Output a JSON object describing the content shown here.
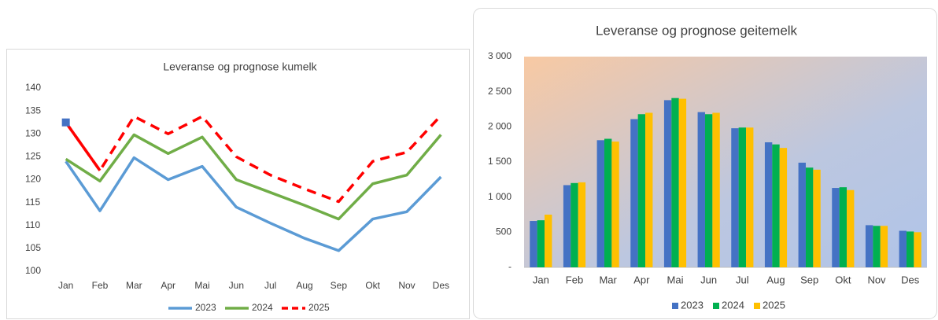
{
  "chart_data": [
    {
      "type": "line",
      "title": "Leveranse og prognose kumelk",
      "categories": [
        "Jan",
        "Feb",
        "Mar",
        "Apr",
        "Mai",
        "Jun",
        "Jul",
        "Aug",
        "Sep",
        "Okt",
        "Nov",
        "Des"
      ],
      "ylim": [
        100,
        140
      ],
      "yticks": [
        100,
        105,
        110,
        115,
        120,
        125,
        130,
        135,
        140
      ],
      "grid": false,
      "legend": "bottom",
      "series": [
        {
          "name": "2023",
          "color": "#5b9bd5",
          "values": [
            124,
            113.2,
            124.8,
            120,
            122.9,
            114,
            110.5,
            107.2,
            104.5,
            111.4,
            113,
            120.6
          ]
        },
        {
          "name": "2024",
          "color": "#70ad47",
          "values": [
            124.5,
            119.7,
            129.8,
            125.7,
            129.3,
            120,
            117.2,
            114.4,
            111.4,
            119.1,
            121,
            129.8
          ]
        },
        {
          "name": "2025",
          "color": "#ff0000",
          "values": [
            132.5,
            122,
            133.8,
            130,
            133.8,
            125,
            121,
            118,
            115.2,
            124,
            126,
            134
          ]
        }
      ]
    },
    {
      "type": "bar",
      "title": "Leveranse og prognose geitemelk",
      "categories": [
        "Jan",
        "Feb",
        "Mar",
        "Apr",
        "Mai",
        "Jun",
        "Jul",
        "Aug",
        "Sep",
        "Okt",
        "Nov",
        "Des"
      ],
      "ylim": [
        0,
        3000
      ],
      "yticks": [
        {
          "value": 0,
          "label": "-"
        },
        {
          "value": 500,
          "label": "500"
        },
        {
          "value": 1000,
          "label": "1 000"
        },
        {
          "value": 1500,
          "label": "1 500"
        },
        {
          "value": 2000,
          "label": "2 000"
        },
        {
          "value": 2500,
          "label": "2 500"
        },
        {
          "value": 3000,
          "label": "3 000"
        }
      ],
      "grid": false,
      "legend": "bottom",
      "series": [
        {
          "name": "2023",
          "color": "#4472c4",
          "values": [
            660,
            1170,
            1810,
            2110,
            2380,
            2210,
            1980,
            1780,
            1490,
            1130,
            600,
            520
          ]
        },
        {
          "name": "2024",
          "color": "#00b050",
          "values": [
            670,
            1200,
            1830,
            2180,
            2410,
            2180,
            1990,
            1750,
            1420,
            1140,
            590,
            510
          ]
        },
        {
          "name": "2025",
          "color": "#ffc000",
          "values": [
            750,
            1210,
            1790,
            2200,
            2400,
            2200,
            1990,
            1700,
            1390,
            1100,
            590,
            500
          ]
        }
      ]
    }
  ]
}
